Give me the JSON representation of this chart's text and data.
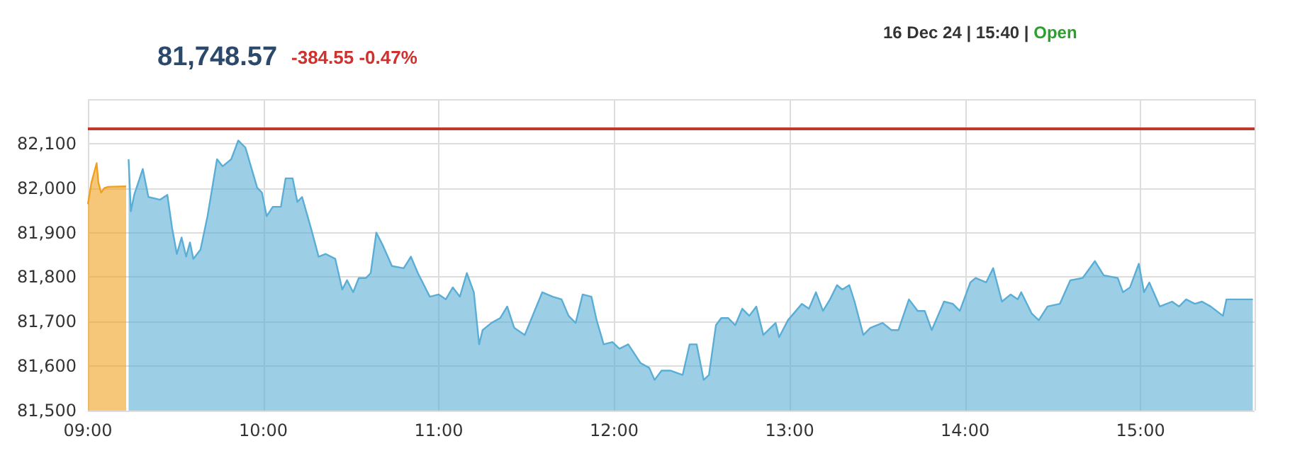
{
  "chart_data": {
    "type": "area",
    "title": "81,748.57",
    "subtitle": "-384.55 -0.47%",
    "annotations": [
      "16 Dec 24 | 15:40 | ",
      "Open"
    ],
    "xlim": [
      9,
      15.65
    ],
    "xticks": [
      {
        "value": 9,
        "label": "09:00"
      },
      {
        "value": 10,
        "label": "10:00"
      },
      {
        "value": 11,
        "label": "11:00"
      },
      {
        "value": 12,
        "label": "12:00"
      },
      {
        "value": 13,
        "label": "13:00"
      },
      {
        "value": 14,
        "label": "14:00"
      },
      {
        "value": 15,
        "label": "15:00"
      }
    ],
    "ylim": [
      81500,
      82200
    ],
    "yticks": [
      {
        "value": 81500,
        "label": "81,500"
      },
      {
        "value": 81600,
        "label": "81,600"
      },
      {
        "value": 81700,
        "label": "81,700"
      },
      {
        "value": 81800,
        "label": "81,800"
      },
      {
        "value": 81900,
        "label": "81,900"
      },
      {
        "value": 82000,
        "label": "82,000"
      },
      {
        "value": 82100,
        "label": "82,100"
      }
    ],
    "grid": true,
    "marker": "none",
    "ref_lines": [
      {
        "axis": "y",
        "value": 82133,
        "color": "#c0392b"
      }
    ],
    "series": [
      {
        "color": "#f0a020",
        "x": [
          9.0,
          9.02,
          9.05,
          9.06,
          9.075,
          9.094,
          9.116,
          9.218
        ],
        "values": [
          81964,
          82012,
          82056,
          82012,
          81990,
          82000,
          82003,
          82004
        ]
      },
      {
        "color": "#5aaed6",
        "x": [
          9.232,
          9.245,
          9.264,
          9.313,
          9.345,
          9.412,
          9.453,
          9.48,
          9.507,
          9.534,
          9.56,
          9.582,
          9.601,
          9.642,
          9.682,
          9.736,
          9.768,
          9.817,
          9.857,
          9.898,
          9.965,
          9.992,
          10.019,
          10.054,
          10.1,
          10.127,
          10.167,
          10.194,
          10.221,
          10.275,
          10.315,
          10.356,
          10.41,
          10.45,
          10.477,
          10.512,
          10.544,
          10.585,
          10.612,
          10.644,
          10.679,
          10.733,
          10.8,
          10.841,
          10.881,
          10.949,
          11.0,
          11.04,
          11.08,
          11.12,
          11.16,
          11.2,
          11.23,
          11.25,
          11.3,
          11.35,
          11.39,
          11.43,
          11.49,
          11.54,
          11.59,
          11.65,
          11.7,
          11.74,
          11.78,
          11.82,
          11.87,
          11.9,
          11.94,
          11.99,
          12.03,
          12.08,
          12.15,
          12.2,
          12.23,
          12.27,
          12.32,
          12.39,
          12.43,
          12.47,
          12.51,
          12.54,
          12.58,
          12.61,
          12.65,
          12.69,
          12.73,
          12.77,
          12.81,
          12.85,
          12.92,
          12.94,
          12.99,
          13.07,
          13.11,
          13.15,
          13.19,
          13.23,
          13.27,
          13.3,
          13.34,
          13.37,
          13.42,
          13.46,
          13.53,
          13.58,
          13.62,
          13.68,
          13.73,
          13.77,
          13.81,
          13.88,
          13.93,
          13.97,
          14.03,
          14.06,
          14.12,
          14.16,
          14.21,
          14.26,
          14.3,
          14.32,
          14.38,
          14.42,
          14.47,
          14.54,
          14.6,
          14.67,
          14.74,
          14.79,
          14.87,
          14.9,
          14.94,
          14.99,
          15.02,
          15.05,
          15.11,
          15.18,
          15.22,
          15.26,
          15.31,
          15.35,
          15.4,
          15.47,
          15.49,
          15.64
        ],
        "values": [
          82065,
          81948,
          81985,
          82043,
          81980,
          81974,
          81985,
          81910,
          81852,
          81889,
          81846,
          81878,
          81841,
          81862,
          81937,
          82065,
          82049,
          82065,
          82107,
          82091,
          82001,
          81990,
          81937,
          81958,
          81958,
          82022,
          82022,
          81969,
          81980,
          81905,
          81846,
          81852,
          81841,
          81772,
          81793,
          81766,
          81798,
          81798,
          81809,
          81900,
          81873,
          81825,
          81820,
          81846,
          81809,
          81756,
          81761,
          81750,
          81777,
          81756,
          81809,
          81766,
          81649,
          81681,
          81697,
          81708,
          81734,
          81686,
          81670,
          81718,
          81766,
          81756,
          81750,
          81713,
          81697,
          81761,
          81756,
          81703,
          81649,
          81654,
          81639,
          81649,
          81607,
          81596,
          81569,
          81590,
          81590,
          81580,
          81649,
          81649,
          81569,
          81580,
          81692,
          81708,
          81708,
          81692,
          81729,
          81713,
          81734,
          81670,
          81697,
          81665,
          81703,
          81740,
          81729,
          81766,
          81724,
          81750,
          81782,
          81772,
          81782,
          81745,
          81670,
          81686,
          81697,
          81681,
          81681,
          81750,
          81724,
          81724,
          81681,
          81745,
          81740,
          81724,
          81788,
          81798,
          81788,
          81820,
          81745,
          81761,
          81750,
          81766,
          81718,
          81703,
          81734,
          81740,
          81793,
          81798,
          81836,
          81804,
          81798,
          81766,
          81777,
          81830,
          81766,
          81788,
          81734,
          81745,
          81734,
          81750,
          81740,
          81745,
          81734,
          81713,
          81750,
          81750
        ]
      }
    ]
  }
}
